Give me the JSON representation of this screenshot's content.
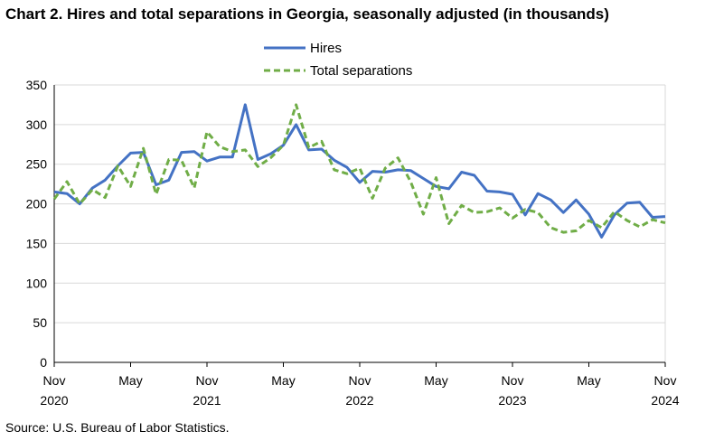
{
  "title": "Chart 2. Hires and total separations in Georgia, seasonally adjusted (in thousands)",
  "source": "Source: U.S. Bureau of Labor Statistics.",
  "colors": {
    "hires": "#4472C4",
    "separations": "#70AD47",
    "grid": "#d9d9d9",
    "axis": "#000000"
  },
  "chart_data": {
    "type": "line",
    "title": "Chart 2. Hires and total separations in Georgia, seasonally adjusted (in thousands)",
    "xlabel": "",
    "ylabel": "",
    "ylim": [
      0,
      350
    ],
    "yticks": [
      0,
      50,
      100,
      150,
      200,
      250,
      300,
      350
    ],
    "grid": true,
    "legend_position": "top-center",
    "x": [
      "Nov 2020",
      "Dec 2020",
      "Jan 2021",
      "Feb 2021",
      "Mar 2021",
      "Apr 2021",
      "May 2021",
      "Jun 2021",
      "Jul 2021",
      "Aug 2021",
      "Sep 2021",
      "Oct 2021",
      "Nov 2021",
      "Dec 2021",
      "Jan 2022",
      "Feb 2022",
      "Mar 2022",
      "Apr 2022",
      "May 2022",
      "Jun 2022",
      "Jul 2022",
      "Aug 2022",
      "Sep 2022",
      "Oct 2022",
      "Nov 2022",
      "Dec 2022",
      "Jan 2023",
      "Feb 2023",
      "Mar 2023",
      "Apr 2023",
      "May 2023",
      "Jun 2023",
      "Jul 2023",
      "Aug 2023",
      "Sep 2023",
      "Oct 2023",
      "Nov 2023",
      "Dec 2023",
      "Jan 2024",
      "Feb 2024",
      "Mar 2024",
      "Apr 2024",
      "May 2024",
      "Jun 2024",
      "Jul 2024",
      "Aug 2024",
      "Sep 2024",
      "Oct 2024",
      "Nov 2024"
    ],
    "x_tick_labels": [
      {
        "index": 0,
        "month": "Nov",
        "year": "2020"
      },
      {
        "index": 6,
        "month": "May",
        "year": ""
      },
      {
        "index": 12,
        "month": "Nov",
        "year": "2021"
      },
      {
        "index": 18,
        "month": "May",
        "year": ""
      },
      {
        "index": 24,
        "month": "Nov",
        "year": "2022"
      },
      {
        "index": 30,
        "month": "May",
        "year": ""
      },
      {
        "index": 36,
        "month": "Nov",
        "year": "2023"
      },
      {
        "index": 42,
        "month": "May",
        "year": ""
      },
      {
        "index": 48,
        "month": "Nov",
        "year": "2024"
      }
    ],
    "series": [
      {
        "name": "Hires",
        "style": "solid",
        "values": [
          215,
          213,
          200,
          220,
          230,
          248,
          264,
          265,
          224,
          230,
          265,
          266,
          254,
          259,
          259,
          325,
          256,
          263,
          274,
          300,
          268,
          269,
          255,
          246,
          227,
          241,
          240,
          243,
          242,
          232,
          222,
          219,
          240,
          236,
          216,
          215,
          212,
          186,
          213,
          205,
          189,
          205,
          187,
          158,
          186,
          201,
          202,
          183,
          184
        ]
      },
      {
        "name": "Total separations",
        "style": "dashed",
        "values": [
          206,
          228,
          200,
          218,
          208,
          248,
          222,
          270,
          212,
          256,
          255,
          220,
          291,
          272,
          266,
          268,
          247,
          258,
          274,
          325,
          271,
          279,
          243,
          238,
          245,
          207,
          245,
          258,
          228,
          187,
          233,
          175,
          198,
          189,
          190,
          195,
          182,
          193,
          189,
          170,
          164,
          166,
          179,
          170,
          190,
          179,
          171,
          180,
          176
        ]
      }
    ]
  }
}
